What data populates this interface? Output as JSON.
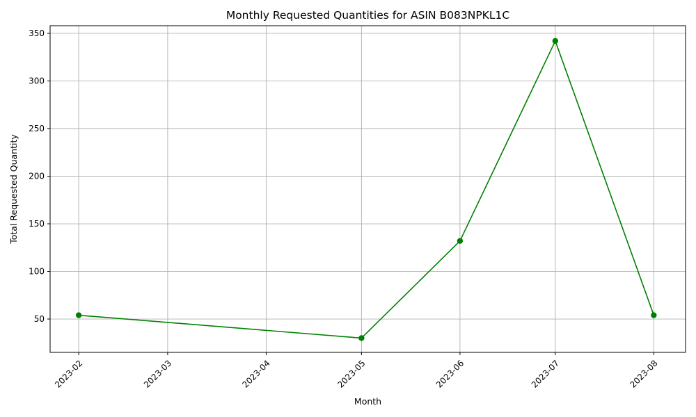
{
  "chart_data": {
    "type": "line",
    "title": "Monthly Requested Quantities for ASIN B083NPKL1C",
    "xlabel": "Month",
    "ylabel": "Total Requested Quantity",
    "x_tick_labels": [
      "2023-02",
      "2023-03",
      "2023-04",
      "2023-05",
      "2023-06",
      "2023-07",
      "2023-08"
    ],
    "y_ticks": [
      50,
      100,
      150,
      200,
      250,
      300,
      350
    ],
    "ylim": [
      15,
      358
    ],
    "xlim": [
      "2023-01-23",
      "2023-08-11"
    ],
    "grid": true,
    "series": [
      {
        "color": "#008000",
        "marker": "circle",
        "points": [
          {
            "x": "2023-02-01",
            "y": 54
          },
          {
            "x": "2023-05-01",
            "y": 30
          },
          {
            "x": "2023-06-01",
            "y": 132
          },
          {
            "x": "2023-07-01",
            "y": 342
          },
          {
            "x": "2023-08-01",
            "y": 54
          }
        ]
      }
    ]
  }
}
